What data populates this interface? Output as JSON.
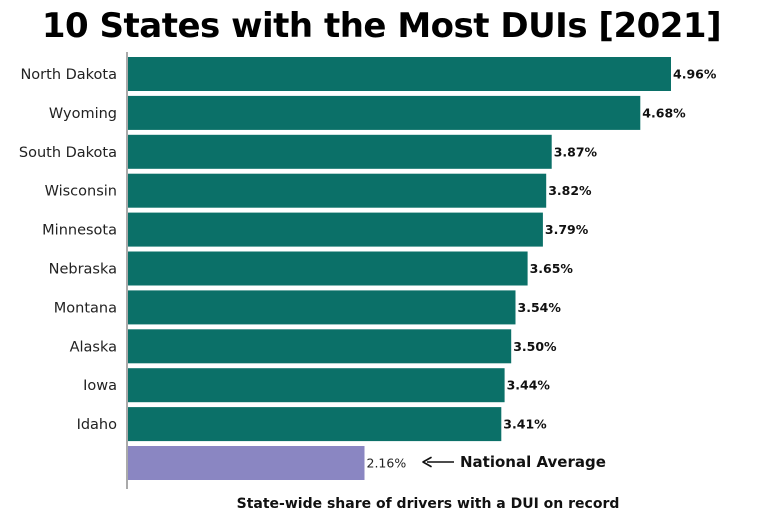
{
  "chart_data": {
    "type": "bar",
    "orientation": "horizontal",
    "title": "10 States with the Most DUIs [2021]",
    "xlabel": "State-wide share of drivers with a DUI on record",
    "ylabel": "",
    "categories": [
      "North Dakota",
      "Wyoming",
      "South Dakota",
      "Wisconsin",
      "Minnesota",
      "Nebraska",
      "Montana",
      "Alaska",
      "Iowa",
      "Idaho",
      ""
    ],
    "values": [
      4.96,
      4.68,
      3.87,
      3.82,
      3.79,
      3.65,
      3.54,
      3.5,
      3.44,
      3.41,
      2.16
    ],
    "value_labels": [
      "4.96%",
      "4.68%",
      "3.87%",
      "3.82%",
      "3.79%",
      "3.65%",
      "3.54%",
      "3.50%",
      "3.44%",
      "3.41%",
      "2.16%"
    ],
    "xlim": [
      0,
      5
    ],
    "grid": false,
    "legend": "none",
    "colors": {
      "state_bar": "#0b7068",
      "average_bar": "#8a86c2"
    },
    "annotation": {
      "text": "National Average",
      "arrow": "left-arrow",
      "target_index": 10
    }
  }
}
